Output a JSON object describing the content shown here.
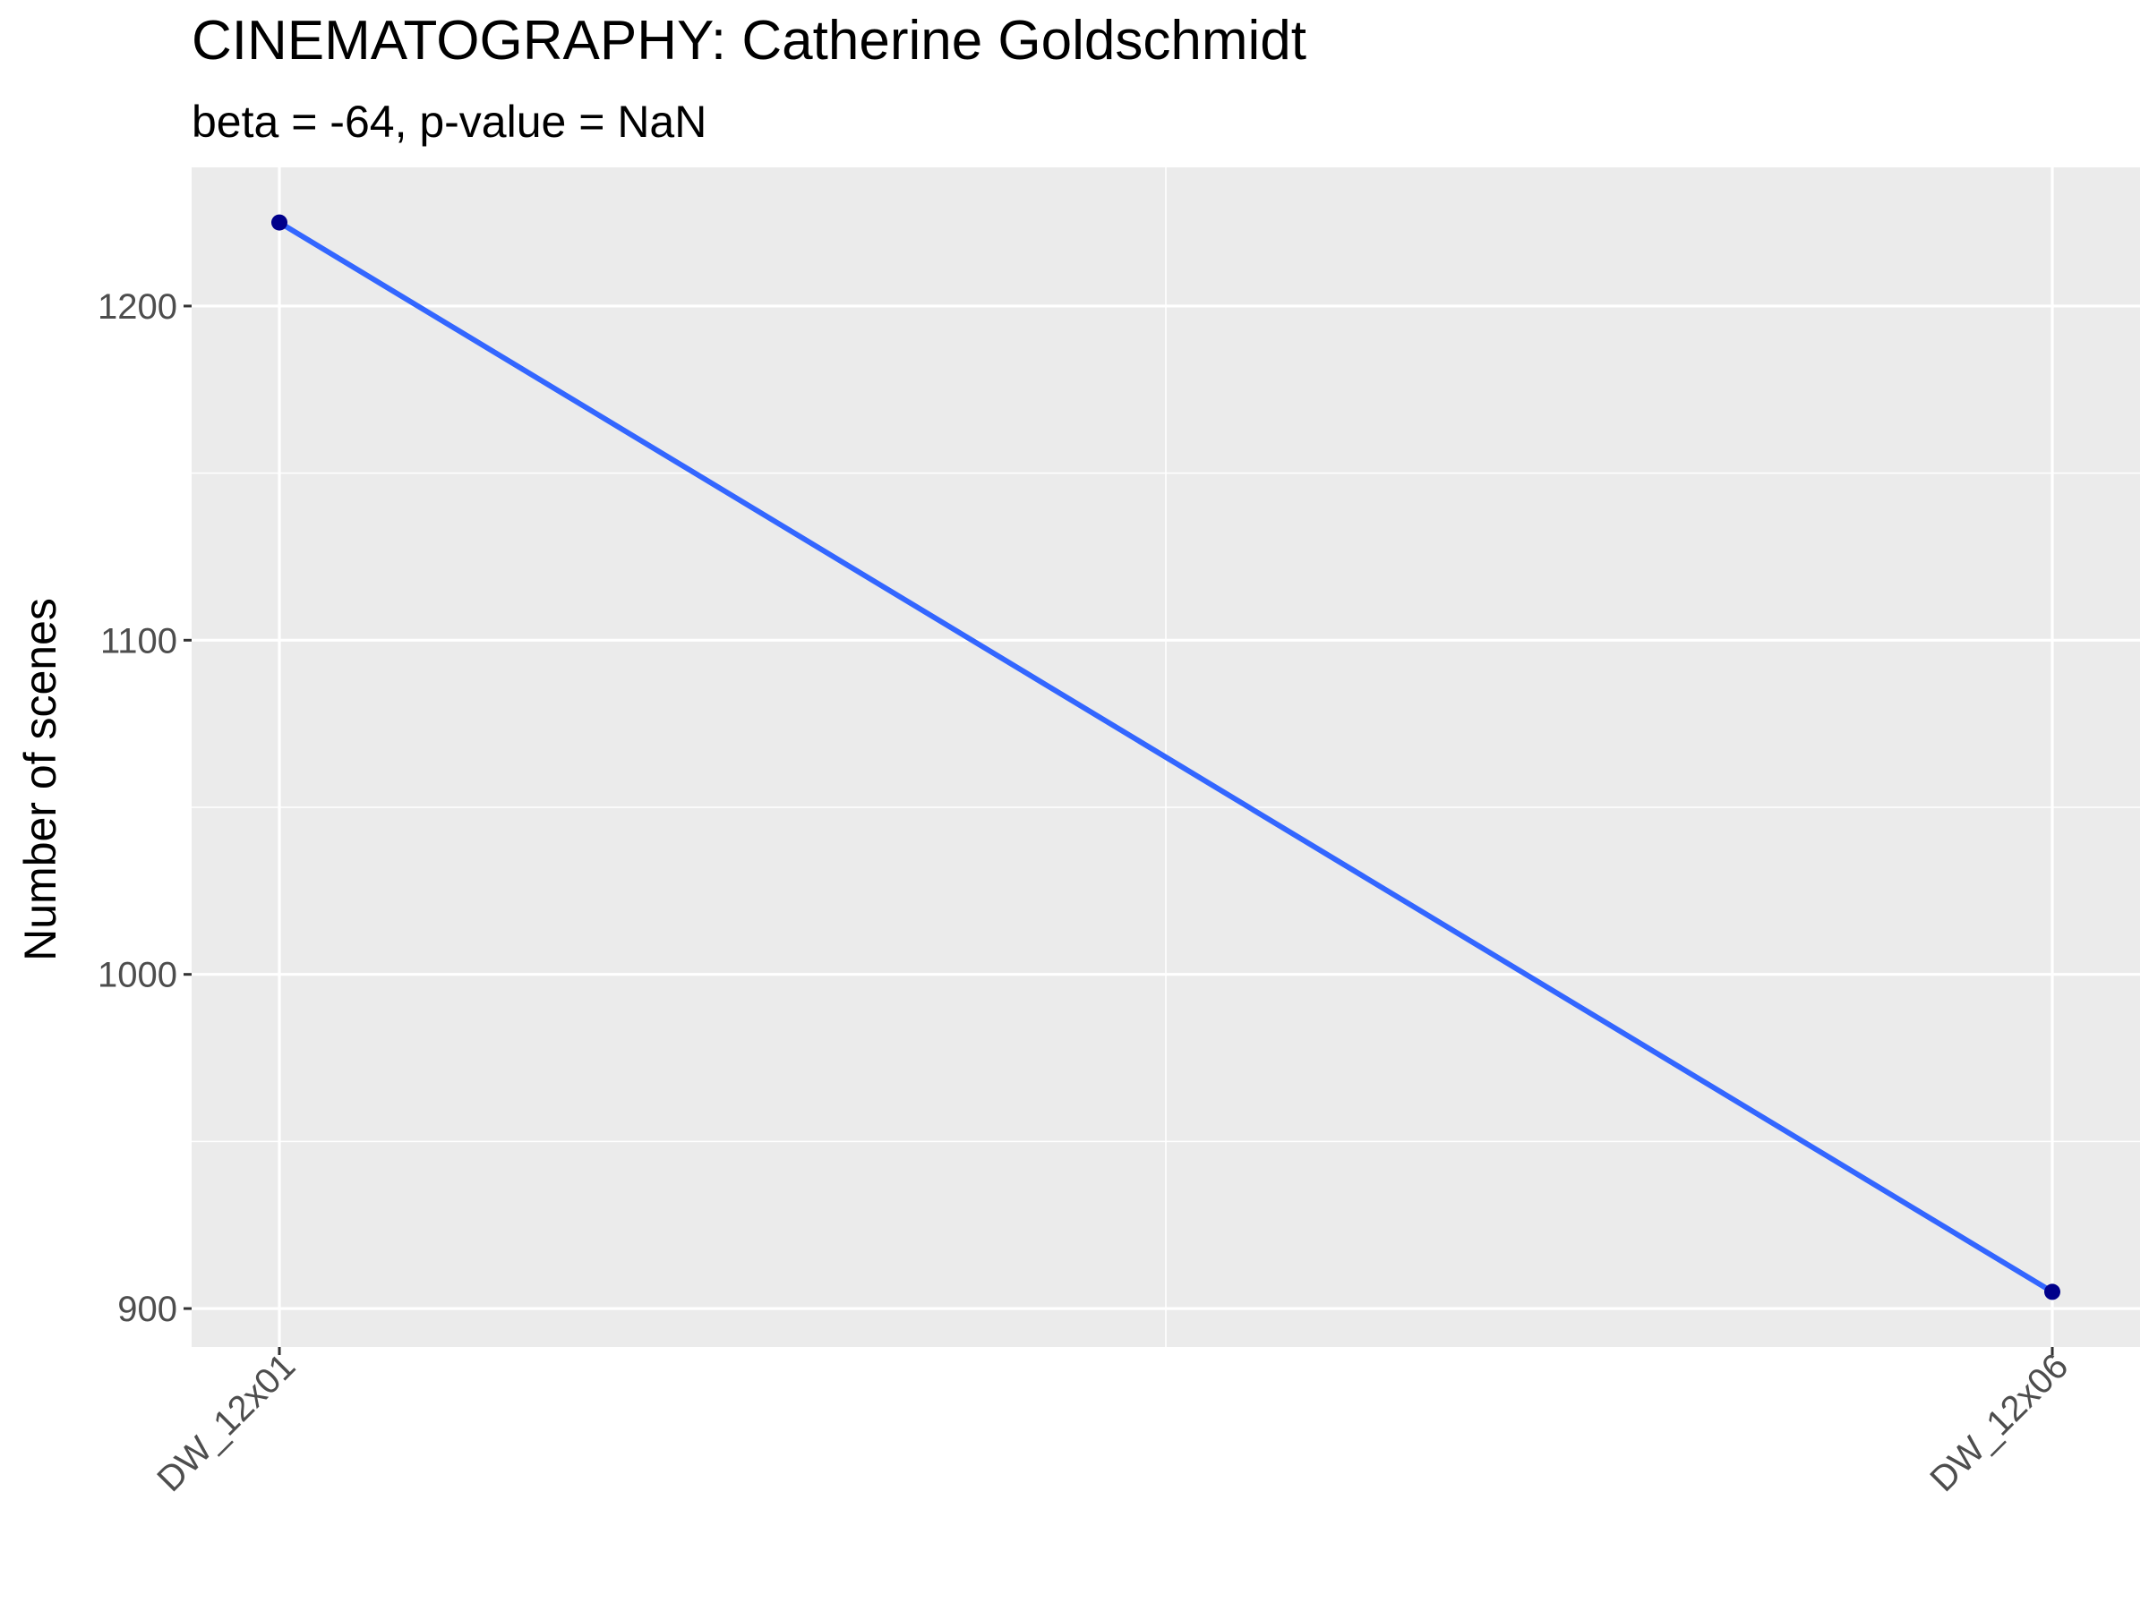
{
  "chart_data": {
    "type": "line",
    "title": "CINEMATOGRAPHY: Catherine Goldschmidt",
    "subtitle": "beta = -64, p-value = NaN",
    "xlabel": "",
    "ylabel": "Number of scenes",
    "categories": [
      "DW_12x01",
      "DW_12x06"
    ],
    "series": [
      {
        "values": [
          1225,
          905
        ]
      }
    ],
    "ylim": [
      888.5,
      1241.5
    ],
    "yticks": [
      900,
      1000,
      1100,
      1200
    ],
    "ytick_labels": [
      "900",
      "1000",
      "1100",
      "1200"
    ],
    "grid": true,
    "legend": "none",
    "colors": {
      "panel_background": "#ebebeb",
      "grid_line": "#ffffff",
      "line": "#3366ff",
      "point": "#00008b"
    }
  }
}
